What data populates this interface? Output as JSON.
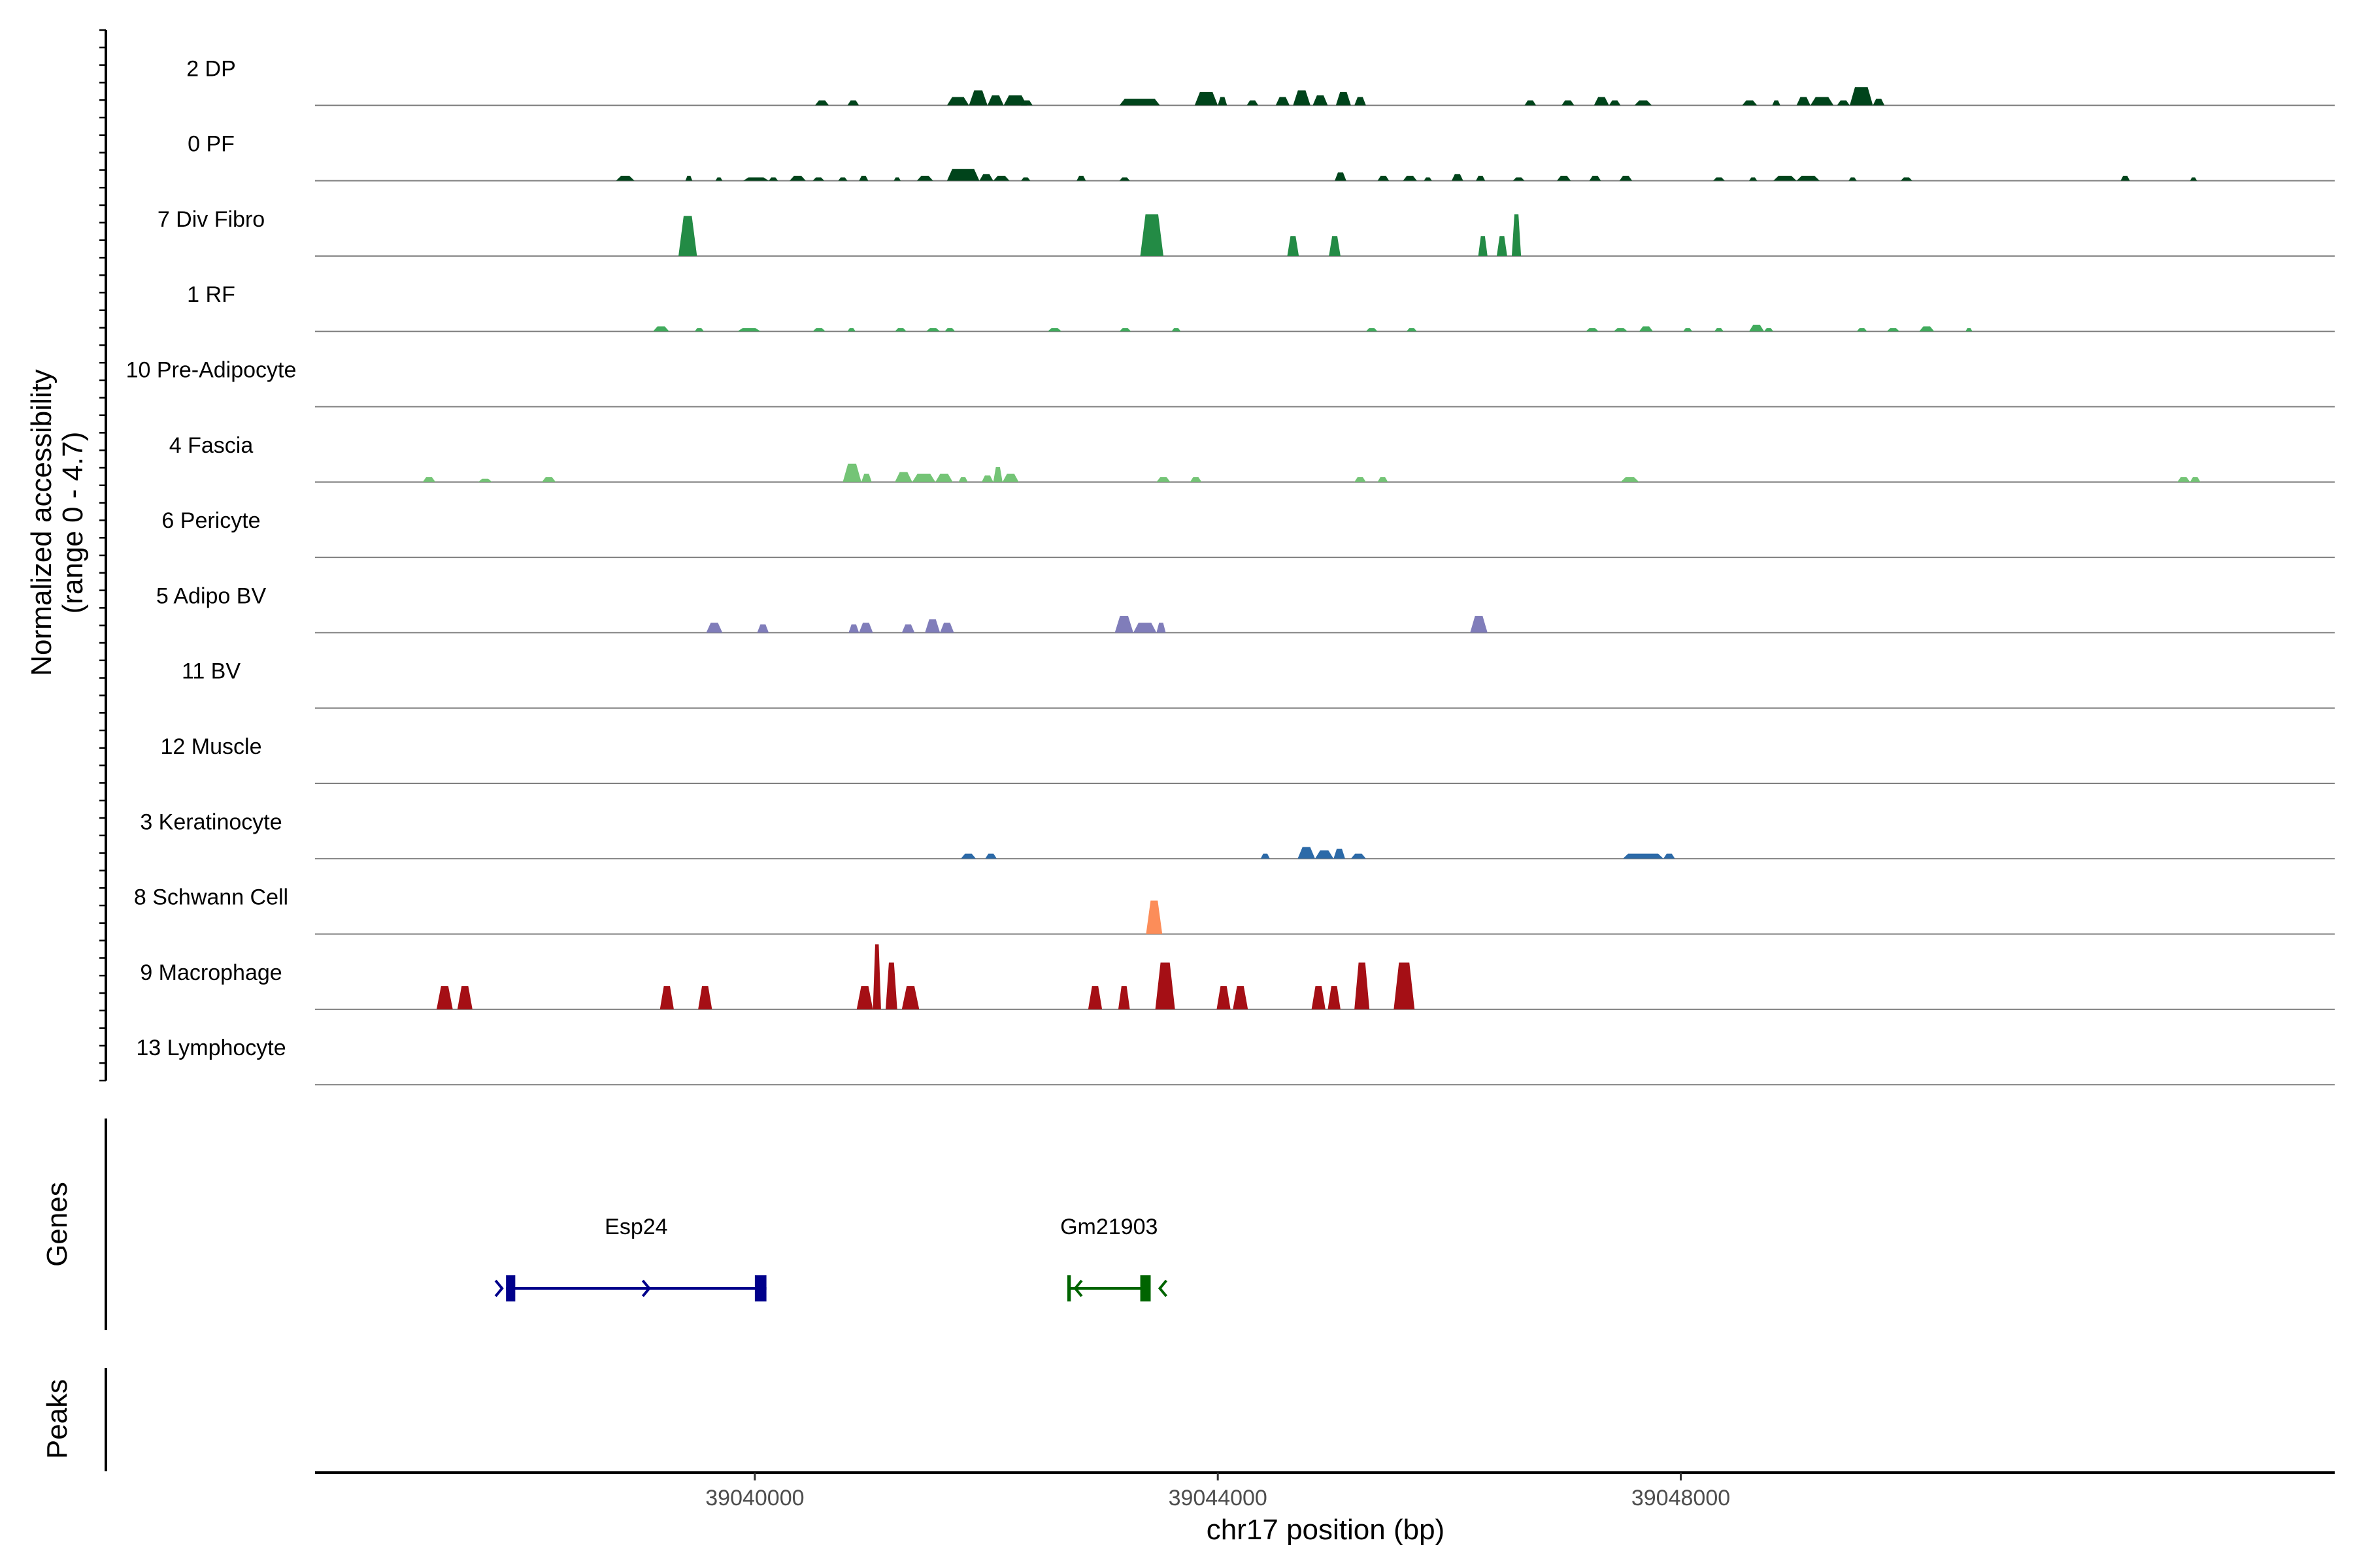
{
  "chart_data": {
    "type": "area",
    "xlabel": "chr17 position (bp)",
    "ylabel_line1": "Normalized accessibility",
    "ylabel_line2": "(range 0 - 4.7)",
    "genes_label": "Genes",
    "peaks_label": "Peaks",
    "xlim": [
      36200,
      53650
    ],
    "ylim": [
      0,
      4.7
    ],
    "x_ticks": [
      {
        "value": 40000,
        "label": "39040000"
      },
      {
        "value": 44000,
        "label": "39044000"
      },
      {
        "value": 48000,
        "label": "39048000"
      }
    ],
    "tracks": [
      {
        "name": "2 DP",
        "color": "#00441b",
        "peaks": [
          [
            40520,
            40640,
            0.3
          ],
          [
            40800,
            40900,
            0.3
          ],
          [
            41660,
            41850,
            0.5
          ],
          [
            41850,
            42010,
            0.9
          ],
          [
            42010,
            42150,
            0.6
          ],
          [
            42150,
            42350,
            0.6
          ],
          [
            42300,
            42400,
            0.3
          ],
          [
            43150,
            43500,
            0.4
          ],
          [
            43800,
            44000,
            0.8
          ],
          [
            44000,
            44080,
            0.5
          ],
          [
            44250,
            44350,
            0.3
          ],
          [
            44500,
            44620,
            0.5
          ],
          [
            44650,
            44800,
            0.9
          ],
          [
            44820,
            44950,
            0.6
          ],
          [
            45020,
            45150,
            0.8
          ],
          [
            45180,
            45280,
            0.5
          ],
          [
            46650,
            46750,
            0.3
          ],
          [
            46970,
            47080,
            0.3
          ],
          [
            47250,
            47380,
            0.5
          ],
          [
            47380,
            47480,
            0.3
          ],
          [
            47600,
            47750,
            0.3
          ],
          [
            48530,
            48660,
            0.3
          ],
          [
            48790,
            48860,
            0.3
          ],
          [
            49000,
            49120,
            0.5
          ],
          [
            49120,
            49320,
            0.5
          ],
          [
            49350,
            49460,
            0.3
          ],
          [
            49460,
            49660,
            1.1
          ],
          [
            49660,
            49760,
            0.4
          ]
        ]
      },
      {
        "name": "0 PF",
        "color": "#00441b",
        "peaks": [
          [
            38800,
            38960,
            0.3
          ],
          [
            39400,
            39460,
            0.3
          ],
          [
            39660,
            39720,
            0.2
          ],
          [
            39900,
            40120,
            0.2
          ],
          [
            40120,
            40200,
            0.2
          ],
          [
            40300,
            40440,
            0.3
          ],
          [
            40500,
            40600,
            0.2
          ],
          [
            40720,
            40800,
            0.2
          ],
          [
            40900,
            40980,
            0.3
          ],
          [
            41200,
            41260,
            0.2
          ],
          [
            41400,
            41540,
            0.3
          ],
          [
            41660,
            41940,
            0.7
          ],
          [
            41940,
            42060,
            0.4
          ],
          [
            42060,
            42200,
            0.3
          ],
          [
            42300,
            42380,
            0.2
          ],
          [
            42780,
            42860,
            0.3
          ],
          [
            43150,
            43240,
            0.2
          ],
          [
            45010,
            45110,
            0.5
          ],
          [
            45380,
            45480,
            0.3
          ],
          [
            45600,
            45720,
            0.3
          ],
          [
            45780,
            45850,
            0.2
          ],
          [
            46020,
            46120,
            0.4
          ],
          [
            46230,
            46310,
            0.3
          ],
          [
            46550,
            46650,
            0.2
          ],
          [
            46930,
            47050,
            0.3
          ],
          [
            47210,
            47310,
            0.3
          ],
          [
            47470,
            47580,
            0.3
          ],
          [
            48280,
            48380,
            0.2
          ],
          [
            48590,
            48660,
            0.2
          ],
          [
            48800,
            49000,
            0.3
          ],
          [
            49000,
            49200,
            0.3
          ],
          [
            49450,
            49520,
            0.2
          ],
          [
            49900,
            50000,
            0.2
          ],
          [
            51800,
            51880,
            0.3
          ],
          [
            52400,
            52460,
            0.2
          ]
        ]
      },
      {
        "name": "7 Div Fibro",
        "color": "#238b45",
        "peaks": [
          [
            39340,
            39500,
            2.4
          ],
          [
            43330,
            43530,
            2.5
          ],
          [
            44600,
            44700,
            1.2
          ],
          [
            44960,
            45060,
            1.2
          ],
          [
            46250,
            46330,
            1.2
          ],
          [
            46410,
            46500,
            1.2
          ],
          [
            46540,
            46620,
            2.5
          ]
        ]
      },
      {
        "name": "1 RF",
        "color": "#41ab5d",
        "peaks": [
          [
            39120,
            39260,
            0.3
          ],
          [
            39480,
            39560,
            0.2
          ],
          [
            39850,
            40050,
            0.2
          ],
          [
            40500,
            40610,
            0.2
          ],
          [
            40800,
            40870,
            0.2
          ],
          [
            41210,
            41310,
            0.2
          ],
          [
            41480,
            41600,
            0.2
          ],
          [
            41640,
            41730,
            0.2
          ],
          [
            42530,
            42650,
            0.2
          ],
          [
            43150,
            43250,
            0.2
          ],
          [
            43600,
            43680,
            0.2
          ],
          [
            45280,
            45380,
            0.2
          ],
          [
            45630,
            45720,
            0.2
          ],
          [
            47180,
            47290,
            0.2
          ],
          [
            47420,
            47540,
            0.2
          ],
          [
            47640,
            47760,
            0.3
          ],
          [
            48020,
            48100,
            0.2
          ],
          [
            48290,
            48370,
            0.2
          ],
          [
            48590,
            48720,
            0.4
          ],
          [
            48720,
            48800,
            0.2
          ],
          [
            49520,
            49610,
            0.2
          ],
          [
            49780,
            49890,
            0.2
          ],
          [
            50060,
            50190,
            0.3
          ],
          [
            50460,
            50520,
            0.2
          ]
        ]
      },
      {
        "name": "10 Pre-Adipocyte",
        "color": "#74c476",
        "peaks": []
      },
      {
        "name": "4 Fascia",
        "color": "#74c476",
        "peaks": [
          [
            37130,
            37240,
            0.3
          ],
          [
            37610,
            37730,
            0.2
          ],
          [
            38160,
            38280,
            0.3
          ],
          [
            40760,
            40920,
            1.1
          ],
          [
            40920,
            41010,
            0.5
          ],
          [
            41210,
            41360,
            0.6
          ],
          [
            41360,
            41560,
            0.5
          ],
          [
            41560,
            41710,
            0.5
          ],
          [
            41760,
            41840,
            0.3
          ],
          [
            41960,
            42060,
            0.4
          ],
          [
            42060,
            42140,
            0.9
          ],
          [
            42140,
            42280,
            0.5
          ],
          [
            43470,
            43590,
            0.3
          ],
          [
            43760,
            43860,
            0.3
          ],
          [
            45180,
            45280,
            0.3
          ],
          [
            45380,
            45470,
            0.3
          ],
          [
            47480,
            47640,
            0.3
          ],
          [
            52290,
            52400,
            0.3
          ],
          [
            52400,
            52490,
            0.3
          ]
        ]
      },
      {
        "name": "6 Pericyte",
        "color": "#807dba",
        "peaks": []
      },
      {
        "name": "5 Adipo BV",
        "color": "#807dba",
        "peaks": [
          [
            39580,
            39720,
            0.6
          ],
          [
            40020,
            40120,
            0.5
          ],
          [
            40810,
            40900,
            0.5
          ],
          [
            40900,
            41020,
            0.6
          ],
          [
            41270,
            41380,
            0.5
          ],
          [
            41470,
            41600,
            0.8
          ],
          [
            41600,
            41720,
            0.6
          ],
          [
            43110,
            43270,
            1.0
          ],
          [
            43270,
            43470,
            0.6
          ],
          [
            43470,
            43550,
            0.6
          ],
          [
            46180,
            46330,
            1.0
          ]
        ]
      },
      {
        "name": "11 BV",
        "color": "#6a51a3",
        "peaks": []
      },
      {
        "name": "12 Muscle",
        "color": "#6a51a3",
        "peaks": []
      },
      {
        "name": "3 Keratinocyte",
        "color": "#2c6aa8",
        "peaks": [
          [
            41780,
            41910,
            0.3
          ],
          [
            41990,
            42090,
            0.3
          ],
          [
            44370,
            44450,
            0.3
          ],
          [
            44690,
            44840,
            0.7
          ],
          [
            44840,
            45000,
            0.5
          ],
          [
            45000,
            45100,
            0.6
          ],
          [
            45150,
            45280,
            0.3
          ],
          [
            47500,
            47850,
            0.3
          ],
          [
            47850,
            47950,
            0.3
          ]
        ]
      },
      {
        "name": "8 Schwann Cell",
        "color": "#fc8d59",
        "peaks": [
          [
            43380,
            43520,
            2.0
          ]
        ]
      },
      {
        "name": "9 Macrophage",
        "color": "#a50f15",
        "peaks": [
          [
            37250,
            37390,
            1.4
          ],
          [
            37430,
            37560,
            1.4
          ],
          [
            39180,
            39300,
            1.4
          ],
          [
            39510,
            39630,
            1.4
          ],
          [
            40880,
            41020,
            1.4
          ],
          [
            41020,
            41090,
            3.9
          ],
          [
            41130,
            41230,
            2.8
          ],
          [
            41270,
            41420,
            1.4
          ],
          [
            42880,
            43000,
            1.4
          ],
          [
            43140,
            43240,
            1.4
          ],
          [
            43460,
            43630,
            2.8
          ],
          [
            43990,
            44110,
            1.4
          ],
          [
            44130,
            44260,
            1.4
          ],
          [
            44810,
            44930,
            1.4
          ],
          [
            44950,
            45060,
            1.4
          ],
          [
            45180,
            45310,
            2.8
          ],
          [
            45520,
            45700,
            2.8
          ]
        ]
      },
      {
        "name": "13 Lymphocyte",
        "color": "#a50f15",
        "peaks": []
      }
    ],
    "genes": [
      {
        "name": "Esp24",
        "color": "#00008b",
        "strand": "+",
        "start": 37850,
        "end": 40100,
        "exons": [
          [
            37850,
            37930
          ],
          [
            40000,
            40100
          ]
        ]
      },
      {
        "name": "Gm21903",
        "color": "#006400",
        "strand": "-",
        "start": 42700,
        "end": 43420,
        "exons": [
          [
            42700,
            42730
          ],
          [
            43330,
            43420
          ]
        ]
      }
    ]
  }
}
